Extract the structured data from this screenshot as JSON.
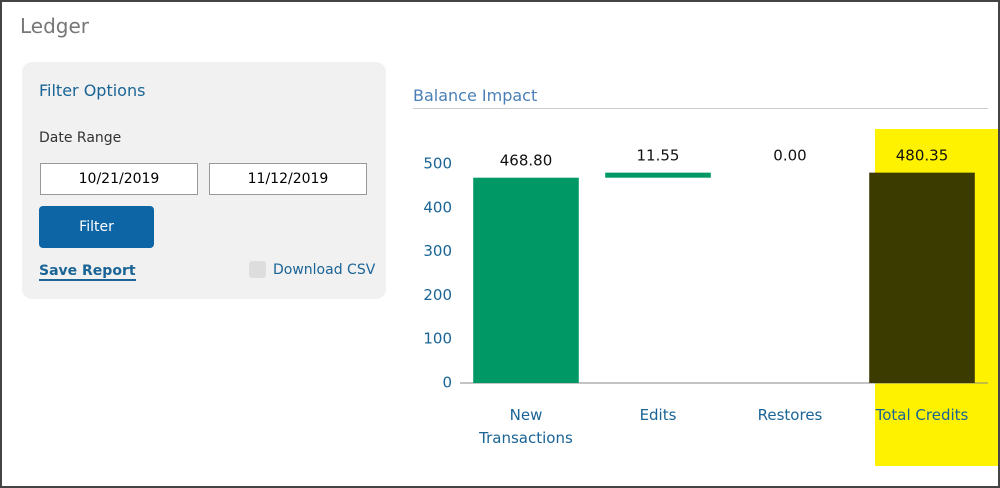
{
  "header": {
    "title": "Ledger"
  },
  "filter": {
    "title": "Filter Options",
    "date_range_label": "Date Range",
    "start_date": "10/21/2019",
    "end_date": "11/12/2019",
    "button": "Filter",
    "save_link": "Save Report",
    "download_label": "Download CSV"
  },
  "chart_data": {
    "type": "waterfall",
    "title": "Balance Impact",
    "categories": [
      "New Transactions",
      "Edits",
      "Restores",
      "Total Credits"
    ],
    "values": [
      468.8,
      11.55,
      0,
      480.35
    ],
    "value_labels": [
      "468.80",
      "11.55",
      "0.00",
      "480.35"
    ],
    "measures": [
      "relative",
      "relative",
      "relative",
      "total"
    ],
    "colors": [
      "#009966",
      "#009966",
      "#009966",
      "#3b3b00"
    ],
    "highlight_index": 3,
    "highlight_color": "#fff200",
    "ylim": [
      0,
      580
    ],
    "yticks": [
      0,
      100,
      200,
      300,
      400,
      500
    ]
  }
}
